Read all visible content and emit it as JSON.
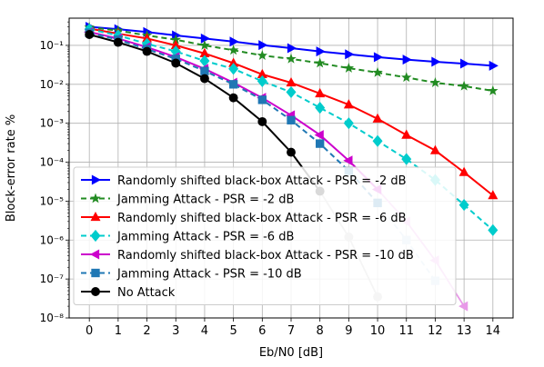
{
  "chart_data": {
    "type": "line",
    "title": "",
    "xlabel": "Eb/N0 [dB]",
    "ylabel": "Block-error rate %",
    "xlim": [
      -0.7,
      14.7
    ],
    "ylim": [
      1e-08,
      0.5
    ],
    "yscale": "log",
    "grid": true,
    "legend_position": "lower-left",
    "x_ticks": [
      0,
      1,
      2,
      3,
      4,
      5,
      6,
      7,
      8,
      9,
      10,
      11,
      12,
      13,
      14
    ],
    "y_ticks": [
      {
        "value": 1e-08,
        "label": "10⁻⁸"
      },
      {
        "value": 1e-07,
        "label": "10⁻⁷"
      },
      {
        "value": 1e-06,
        "label": "10⁻⁶"
      },
      {
        "value": 1e-05,
        "label": "10⁻⁵"
      },
      {
        "value": 0.0001,
        "label": "10⁻⁴"
      },
      {
        "value": 0.001,
        "label": "10⁻³"
      },
      {
        "value": 0.01,
        "label": "10⁻²"
      },
      {
        "value": 0.1,
        "label": "10⁻¹"
      }
    ],
    "series": [
      {
        "name": "Randomly shifted black-box Attack - PSR = -2 dB",
        "color": "#0000ff",
        "linestyle": "solid",
        "marker": "triangle-right",
        "x": [
          0,
          1,
          2,
          3,
          4,
          5,
          6,
          7,
          8,
          9,
          10,
          11,
          12,
          13,
          14
        ],
        "y": [
          0.3,
          0.26,
          0.22,
          0.18,
          0.15,
          0.125,
          0.102,
          0.085,
          0.07,
          0.059,
          0.05,
          0.043,
          0.038,
          0.034,
          0.03
        ]
      },
      {
        "name": "Jamming Attack - PSR = -2 dB",
        "color": "#228b22",
        "linestyle": "dashed",
        "marker": "star",
        "x": [
          0,
          1,
          2,
          3,
          4,
          5,
          6,
          7,
          8,
          9,
          10,
          11,
          12,
          13,
          14
        ],
        "y": [
          0.29,
          0.24,
          0.18,
          0.14,
          0.1,
          0.075,
          0.055,
          0.045,
          0.035,
          0.026,
          0.02,
          0.015,
          0.011,
          0.009,
          0.0068
        ]
      },
      {
        "name": "Randomly shifted black-box Attack - PSR = -6 dB",
        "color": "#ff0000",
        "linestyle": "solid",
        "marker": "triangle-up",
        "x": [
          0,
          1,
          2,
          3,
          4,
          5,
          6,
          7,
          8,
          9,
          10,
          11,
          12,
          13,
          14
        ],
        "y": [
          0.27,
          0.2,
          0.15,
          0.1,
          0.062,
          0.035,
          0.018,
          0.011,
          0.0058,
          0.003,
          0.0013,
          0.0005,
          0.0002,
          5.5e-05,
          1.4e-05
        ]
      },
      {
        "name": "Jamming Attack - PSR = -6 dB",
        "color": "#00cccc",
        "linestyle": "dashed",
        "marker": "diamond",
        "x": [
          0,
          1,
          2,
          3,
          4,
          5,
          6,
          7,
          8,
          9,
          10,
          11,
          12,
          13,
          14
        ],
        "y": [
          0.26,
          0.18,
          0.11,
          0.07,
          0.04,
          0.025,
          0.012,
          0.0063,
          0.0025,
          0.001,
          0.00035,
          0.00012,
          3.5e-05,
          8e-06,
          1.8e-06
        ]
      },
      {
        "name": "Randomly shifted black-box Attack - PSR = -10 dB",
        "color": "#cc00cc",
        "linestyle": "solid",
        "marker": "triangle-left",
        "x": [
          0,
          1,
          2,
          3,
          4,
          5,
          6,
          7,
          8,
          9,
          10,
          11,
          12,
          13
        ],
        "y": [
          0.22,
          0.15,
          0.09,
          0.05,
          0.025,
          0.011,
          0.0045,
          0.0016,
          0.0005,
          0.00011,
          2e-05,
          3e-06,
          3e-07,
          2e-08
        ]
      },
      {
        "name": "Jamming Attack - PSR = -10 dB",
        "color": "#1f77b4",
        "linestyle": "dashed",
        "marker": "square",
        "x": [
          0,
          1,
          2,
          3,
          4,
          5,
          6,
          7,
          8,
          9,
          10,
          11,
          12
        ],
        "y": [
          0.21,
          0.14,
          0.08,
          0.045,
          0.022,
          0.01,
          0.004,
          0.0012,
          0.0003,
          6e-05,
          9e-06,
          1e-06,
          9e-08
        ]
      },
      {
        "name": "No Attack",
        "color": "#000000",
        "linestyle": "solid",
        "marker": "circle",
        "x": [
          0,
          1,
          2,
          3,
          4,
          5,
          6,
          7,
          8,
          9,
          10
        ],
        "y": [
          0.19,
          0.12,
          0.07,
          0.035,
          0.014,
          0.0045,
          0.0011,
          0.00018,
          1.8e-05,
          1.2e-06,
          3.5e-08
        ]
      }
    ],
    "faded_tails": [
      {
        "series": "Randomly shifted black-box Attack - PSR = -10 dB",
        "color": "#e899e8",
        "x": [
          10,
          11,
          12,
          13
        ],
        "y": [
          2e-05,
          3e-06,
          3e-07,
          2e-08
        ]
      },
      {
        "series": "Jamming Attack - PSR = -10 dB",
        "color": "#bcd4ec",
        "x": [
          10,
          11,
          12
        ],
        "y": [
          9e-06,
          1e-06,
          9e-08
        ]
      },
      {
        "series": "No Attack",
        "color": "#bbbbbb",
        "x": [
          8,
          9,
          10
        ],
        "y": [
          1.8e-05,
          1.2e-06,
          3.5e-08
        ]
      }
    ]
  }
}
